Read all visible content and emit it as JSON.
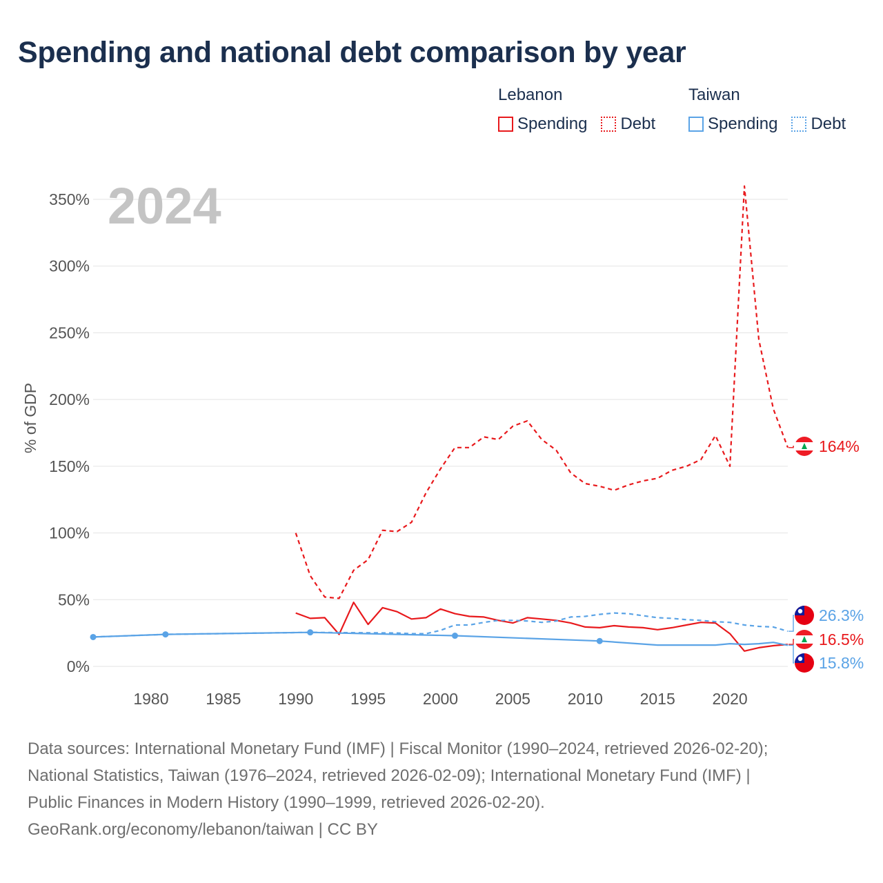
{
  "title": "Spending and national debt comparison by year",
  "legend": {
    "groups": [
      {
        "country": "Lebanon",
        "spending_label": "Spending",
        "debt_label": "Debt",
        "color": "#e8191c"
      },
      {
        "country": "Taiwan",
        "spending_label": "Spending",
        "debt_label": "Debt",
        "color": "#5aa3e6"
      }
    ]
  },
  "year_label": "2024",
  "footer": {
    "line1": "Data sources: International Monetary Fund (IMF) | Fiscal Monitor (1990–2024, retrieved 2026-02-20);",
    "line2": "National Statistics, Taiwan (1976–2024, retrieved 2026-02-09); International Monetary Fund (IMF) |",
    "line3": "Public Finances in Modern History (1990–1999, retrieved 2026-02-20).",
    "line4": "GeoRank.org/economy/lebanon/taiwan | CC BY"
  },
  "chart_data": {
    "type": "line",
    "title": "Spending and national debt comparison by year",
    "xlabel": "",
    "ylabel": "% of GDP",
    "xlim": [
      1976,
      2024
    ],
    "ylim": [
      0,
      350
    ],
    "x_ticks": [
      1980,
      1985,
      1990,
      1995,
      2000,
      2005,
      2010,
      2015,
      2020
    ],
    "y_ticks": [
      0,
      50,
      100,
      150,
      200,
      250,
      300,
      350
    ],
    "y_tick_labels": [
      "0%",
      "50%",
      "100%",
      "150%",
      "200%",
      "250%",
      "300%",
      "350%"
    ],
    "grid": true,
    "legend_position": "top-right",
    "series": [
      {
        "name": "Lebanon Debt",
        "country": "Lebanon",
        "measure": "Debt",
        "color": "#e8191c",
        "style": "dashed",
        "x": [
          1990,
          1991,
          1992,
          1993,
          1994,
          1995,
          1996,
          1997,
          1998,
          1999,
          2000,
          2001,
          2002,
          2003,
          2004,
          2005,
          2006,
          2007,
          2008,
          2009,
          2010,
          2011,
          2012,
          2013,
          2014,
          2015,
          2016,
          2017,
          2018,
          2019,
          2020,
          2021,
          2022,
          2023,
          2024
        ],
        "values": [
          100,
          68,
          52,
          51,
          72,
          80,
          102,
          101,
          108,
          130,
          148,
          164,
          164,
          172,
          170,
          180,
          184,
          170,
          162,
          145,
          137,
          135,
          132,
          136,
          139,
          141,
          147,
          150,
          155,
          173,
          150,
          360,
          245,
          193,
          164
        ],
        "end_label": "164%"
      },
      {
        "name": "Lebanon Spending",
        "country": "Lebanon",
        "measure": "Spending",
        "color": "#e8191c",
        "style": "solid",
        "x": [
          1990,
          1991,
          1992,
          1993,
          1994,
          1995,
          1996,
          1997,
          1998,
          1999,
          2000,
          2001,
          2002,
          2003,
          2004,
          2005,
          2006,
          2007,
          2008,
          2009,
          2010,
          2011,
          2012,
          2013,
          2014,
          2015,
          2016,
          2017,
          2018,
          2019,
          2020,
          2021,
          2022,
          2023,
          2024
        ],
        "values": [
          40,
          36,
          36.5,
          24,
          48,
          31.5,
          44,
          41,
          35.5,
          36.5,
          43,
          39.5,
          37.5,
          37,
          34.5,
          32.5,
          36.5,
          35.5,
          34.5,
          32.5,
          29.5,
          29,
          30.5,
          29.5,
          29,
          27.5,
          29,
          31,
          33,
          32.5,
          24.5,
          11.5,
          14,
          15.5,
          16.5
        ],
        "end_label": "16.5%"
      },
      {
        "name": "Taiwan Debt",
        "country": "Taiwan",
        "measure": "Debt",
        "color": "#5aa3e6",
        "style": "dashed",
        "x": [
          1976,
          1981,
          1991,
          1997,
          1998,
          1999,
          2000,
          2001,
          2002,
          2003,
          2004,
          2005,
          2006,
          2007,
          2008,
          2009,
          2010,
          2011,
          2012,
          2013,
          2014,
          2015,
          2016,
          2017,
          2018,
          2019,
          2020,
          2021,
          2022,
          2023,
          2024
        ],
        "values": [
          22,
          24,
          25.5,
          25,
          24.5,
          24.5,
          27,
          31,
          31,
          33,
          34.5,
          34.5,
          34,
          33,
          34,
          37,
          37.5,
          39,
          40,
          39.5,
          38,
          36.5,
          36,
          35,
          34.5,
          33.5,
          33,
          31,
          30,
          29.5,
          26.3
        ],
        "end_label": "26.3%"
      },
      {
        "name": "Taiwan Spending",
        "country": "Taiwan",
        "measure": "Spending",
        "color": "#5aa3e6",
        "style": "solid",
        "x": [
          1976,
          1981,
          1991,
          2001,
          2011,
          2015,
          2016,
          2017,
          2018,
          2019,
          2020,
          2021,
          2022,
          2023,
          2024
        ],
        "values": [
          22,
          24,
          25.5,
          23,
          19,
          16,
          16,
          16,
          16,
          16,
          17,
          16.5,
          17,
          18,
          15.8
        ],
        "end_label": "15.8%"
      }
    ]
  }
}
